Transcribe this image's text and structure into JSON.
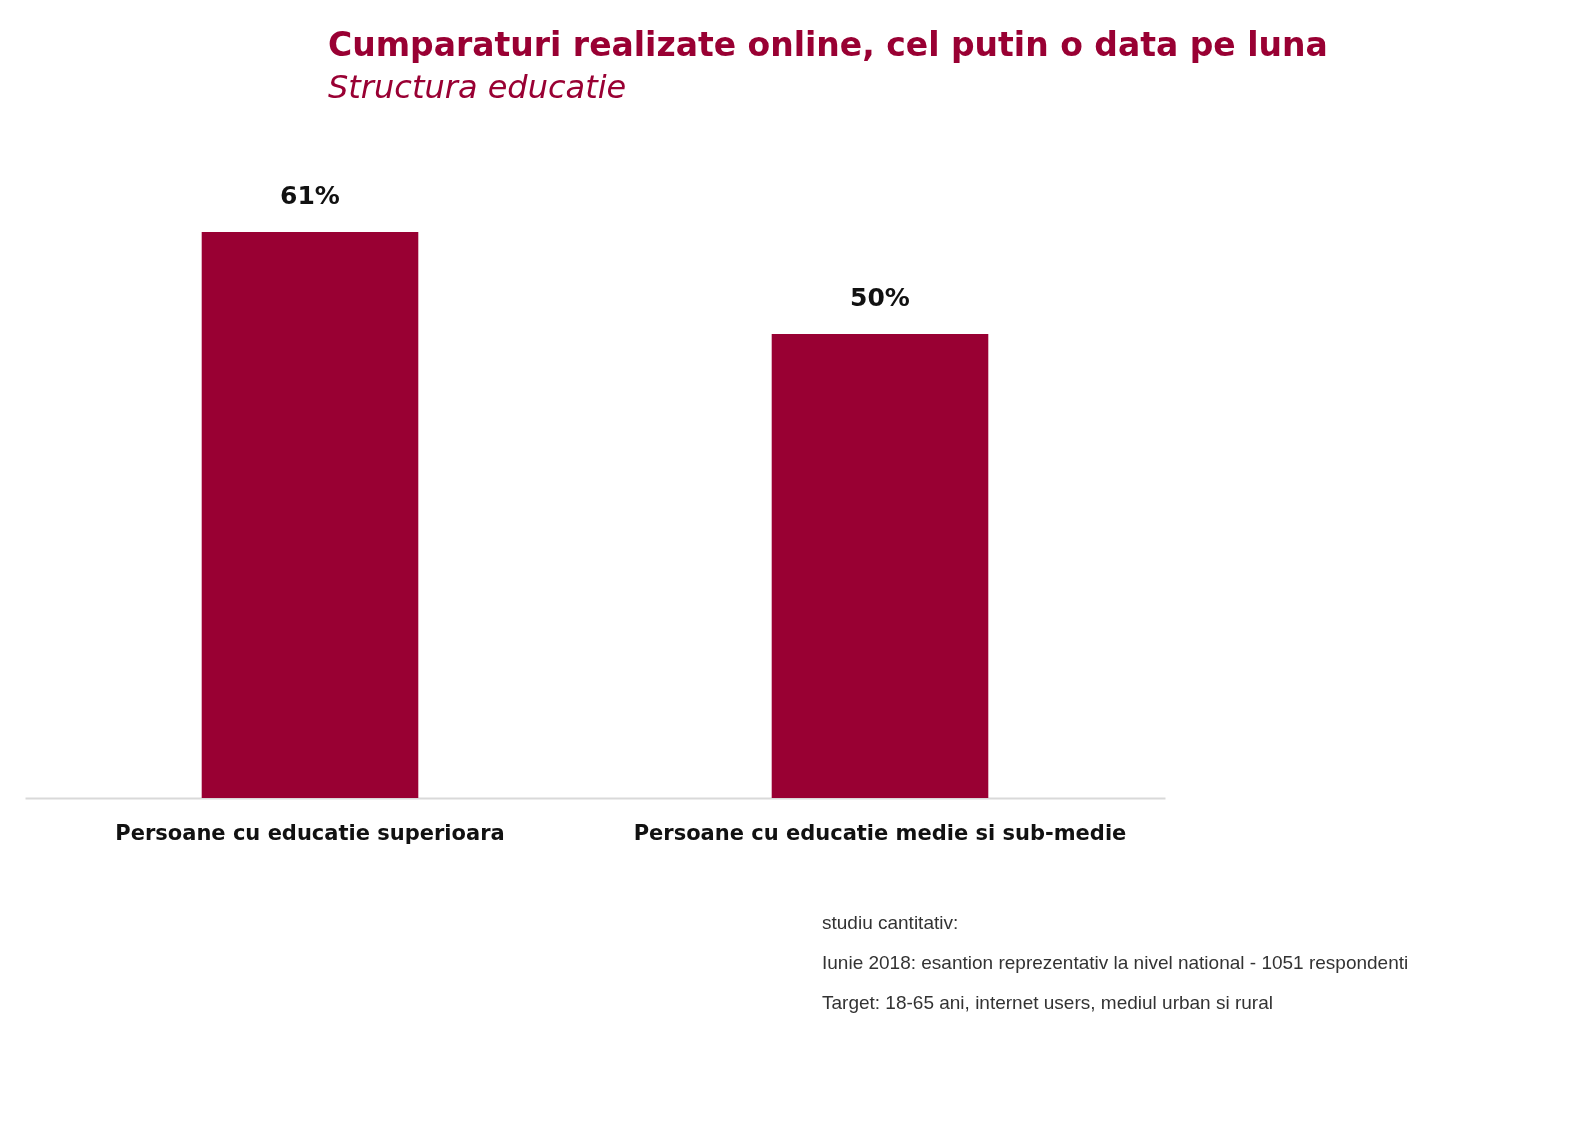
{
  "chart_data": {
    "type": "bar",
    "title": "Cumparaturi realizate online, cel putin o data pe luna",
    "subtitle": "Structura educatie",
    "categories": [
      "Persoane cu educatie superioara",
      "Persoane cu educatie medie si sub-medie"
    ],
    "values": [
      61,
      50
    ],
    "value_labels": [
      "61%",
      "50%"
    ],
    "color": "#990033",
    "annotations": [
      "studiu cantitativ:",
      "Iunie 2018: esantion reprezentativ la nivel national - 1051 respondenti",
      "Target: 18-65 ani, internet users, mediul urban si rural"
    ]
  }
}
